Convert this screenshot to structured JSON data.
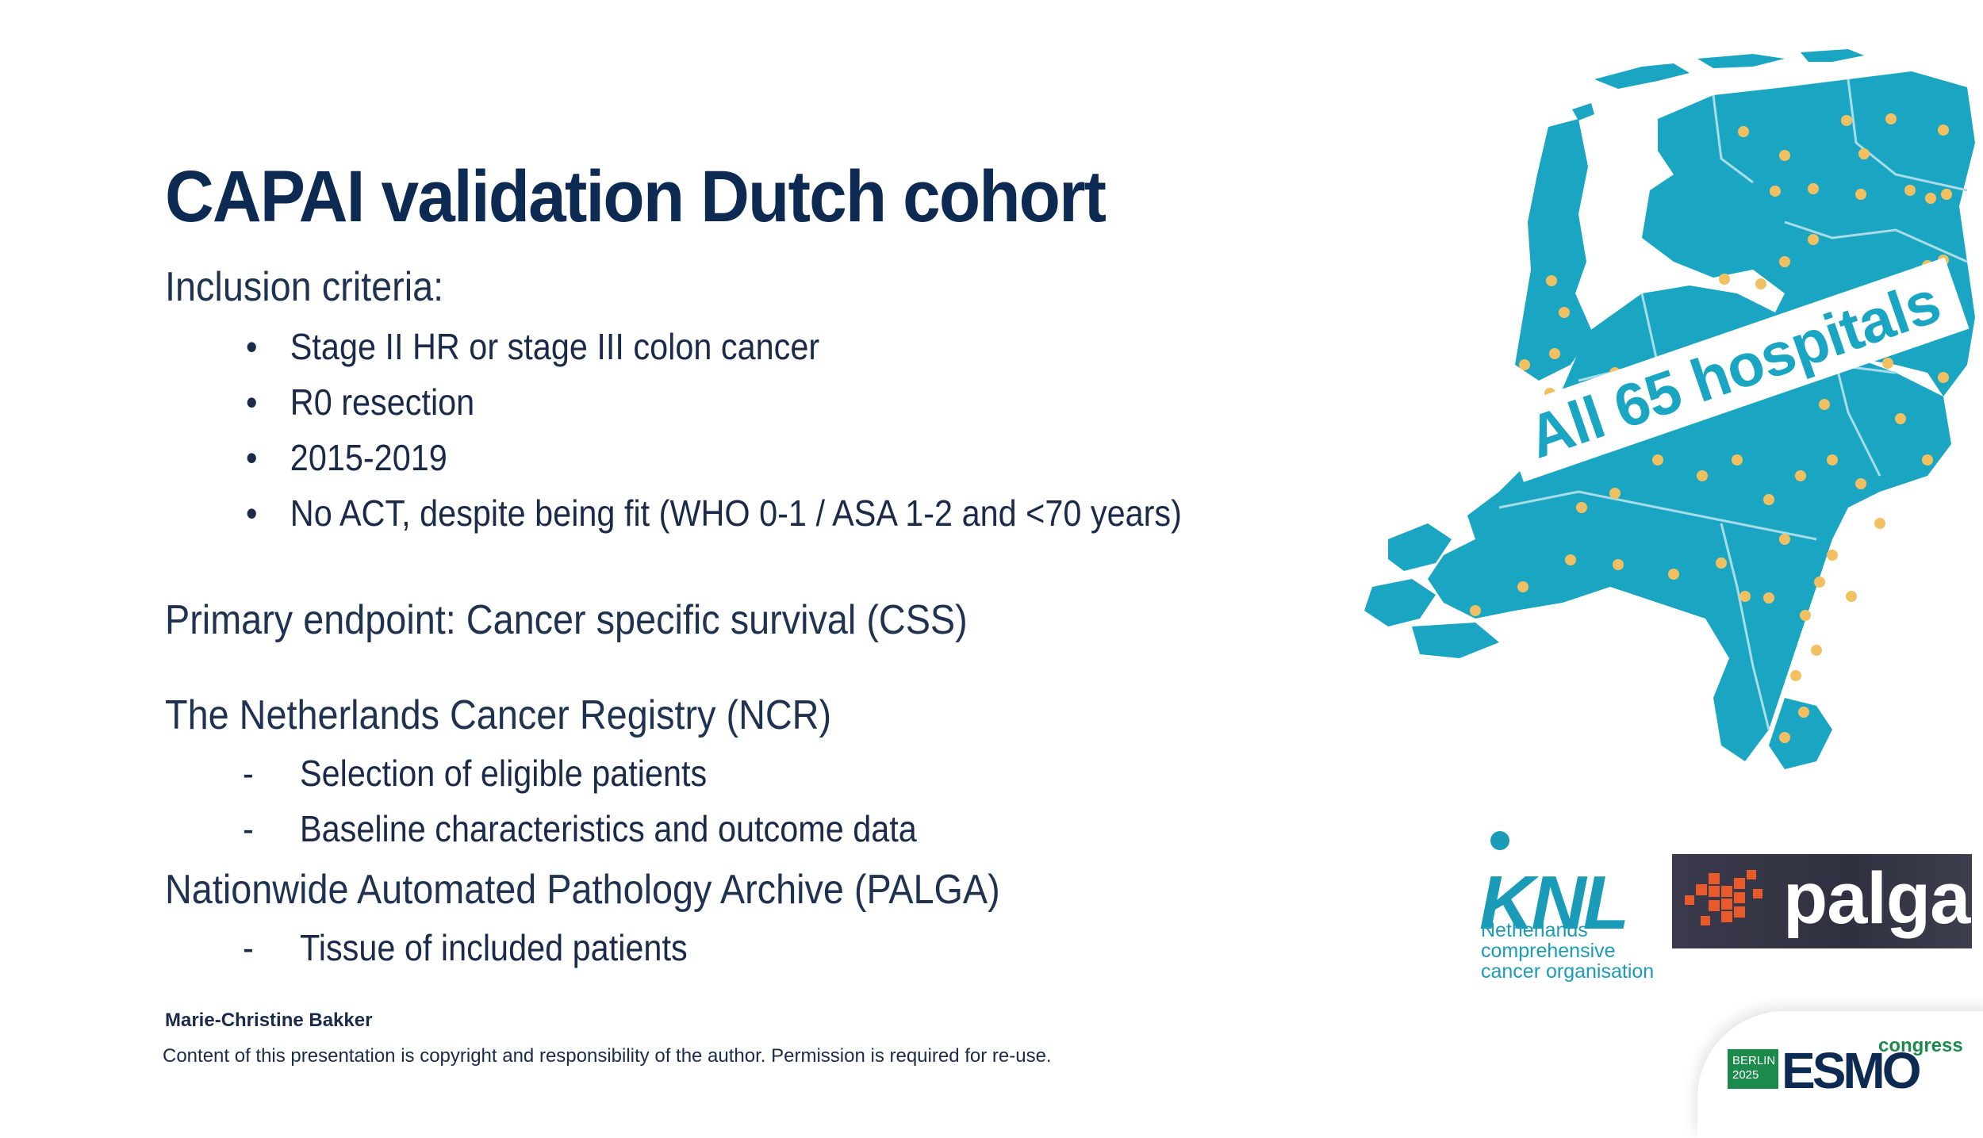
{
  "title": "CAPAI validation Dutch cohort",
  "inclusion": {
    "heading": "Inclusion criteria:",
    "bullet_mark": "•",
    "items": [
      "Stage II HR or stage III colon cancer",
      "R0 resection",
      "2015-2019",
      "No ACT, despite being fit (WHO 0-1 / ASA 1-2 and <70 years)"
    ]
  },
  "primary_endpoint": "Primary endpoint: Cancer specific survival (CSS)",
  "ncr": {
    "heading": "The Netherlands Cancer Registry (NCR)",
    "dash_mark": "-",
    "items": [
      "Selection of eligible patients",
      "Baseline characteristics and outcome data"
    ]
  },
  "palga_section": {
    "heading": "Nationwide Automated Pathology Archive (PALGA)",
    "items": [
      "Tissue of included patients"
    ]
  },
  "author": "Marie-Christine Bakker",
  "copyright": "Content of this presentation is copyright and responsibility of the author. Permission is required for re-use.",
  "map": {
    "label": "All 65 hospitals",
    "map_color": "#1aa6c2",
    "dot_color": "#f3c061",
    "border_color": "#a8dde8"
  },
  "logos": {
    "knl": {
      "word": "KNL",
      "subtitle_lines": [
        "Netherlands",
        "comprehensive",
        "cancer organisation"
      ],
      "color": "#1a9cb8"
    },
    "palga": {
      "word": "palga",
      "mark_color": "#e85a2a"
    },
    "esmo": {
      "badge_lines": [
        "BERLIN",
        "2025"
      ],
      "word": "ESMO",
      "suffix": "congress"
    }
  }
}
